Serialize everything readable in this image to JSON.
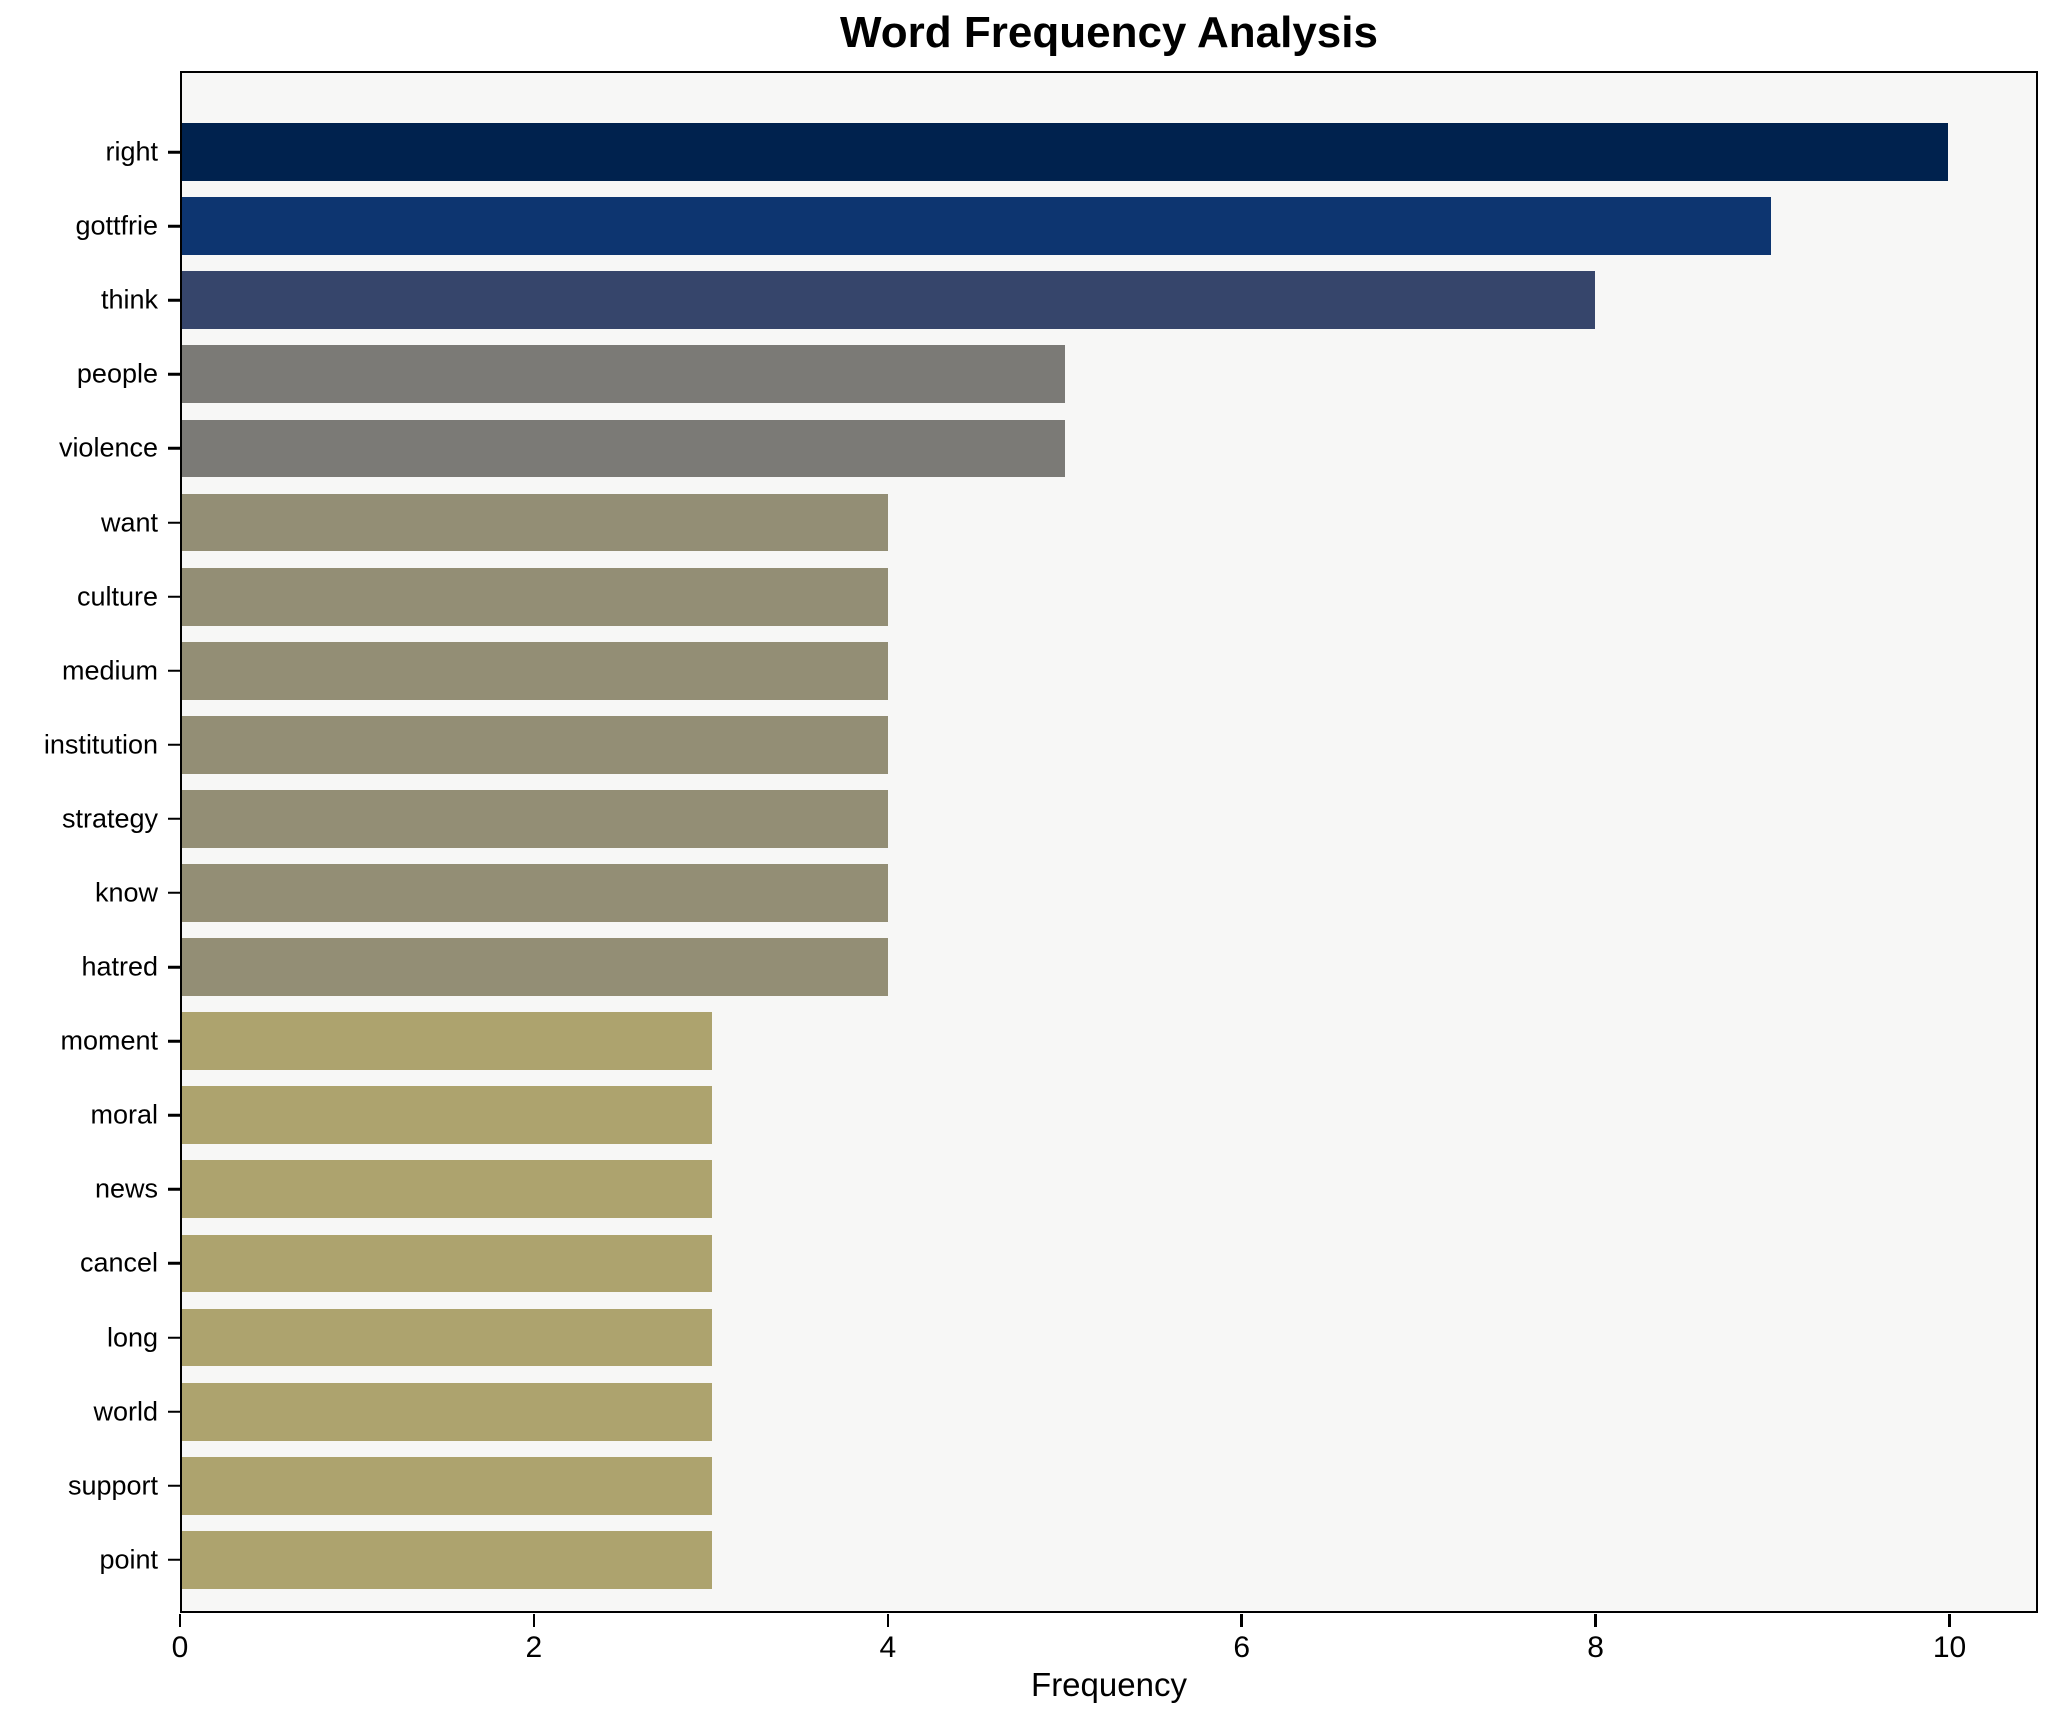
{
  "title": "Word Frequency Analysis",
  "chart_data": {
    "type": "bar",
    "orientation": "horizontal",
    "title": "Word Frequency Analysis",
    "xlabel": "Frequency",
    "ylabel": "",
    "xlim": [
      0,
      10.5
    ],
    "xticks": [
      0,
      2,
      4,
      6,
      8,
      10
    ],
    "grid": false,
    "legend": false,
    "plot_background": "#f7f7f6",
    "figure_background": "#ffffff",
    "categories": [
      "right",
      "gottfrie",
      "think",
      "people",
      "violence",
      "want",
      "culture",
      "medium",
      "institution",
      "strategy",
      "know",
      "hatred",
      "moment",
      "moral",
      "news",
      "cancel",
      "long",
      "world",
      "support",
      "point"
    ],
    "values": [
      10,
      9,
      8,
      5,
      5,
      4,
      4,
      4,
      4,
      4,
      4,
      4,
      3,
      3,
      3,
      3,
      3,
      3,
      3,
      3
    ],
    "bar_colors": [
      "#00224e",
      "#0d3570",
      "#36456b",
      "#7b7a76",
      "#7b7a76",
      "#938e75",
      "#938e75",
      "#938e75",
      "#938e75",
      "#938e75",
      "#938e75",
      "#938e75",
      "#ada36e",
      "#ada36e",
      "#ada36e",
      "#ada36e",
      "#ada36e",
      "#ada36e",
      "#ada36e",
      "#ada36e"
    ]
  }
}
